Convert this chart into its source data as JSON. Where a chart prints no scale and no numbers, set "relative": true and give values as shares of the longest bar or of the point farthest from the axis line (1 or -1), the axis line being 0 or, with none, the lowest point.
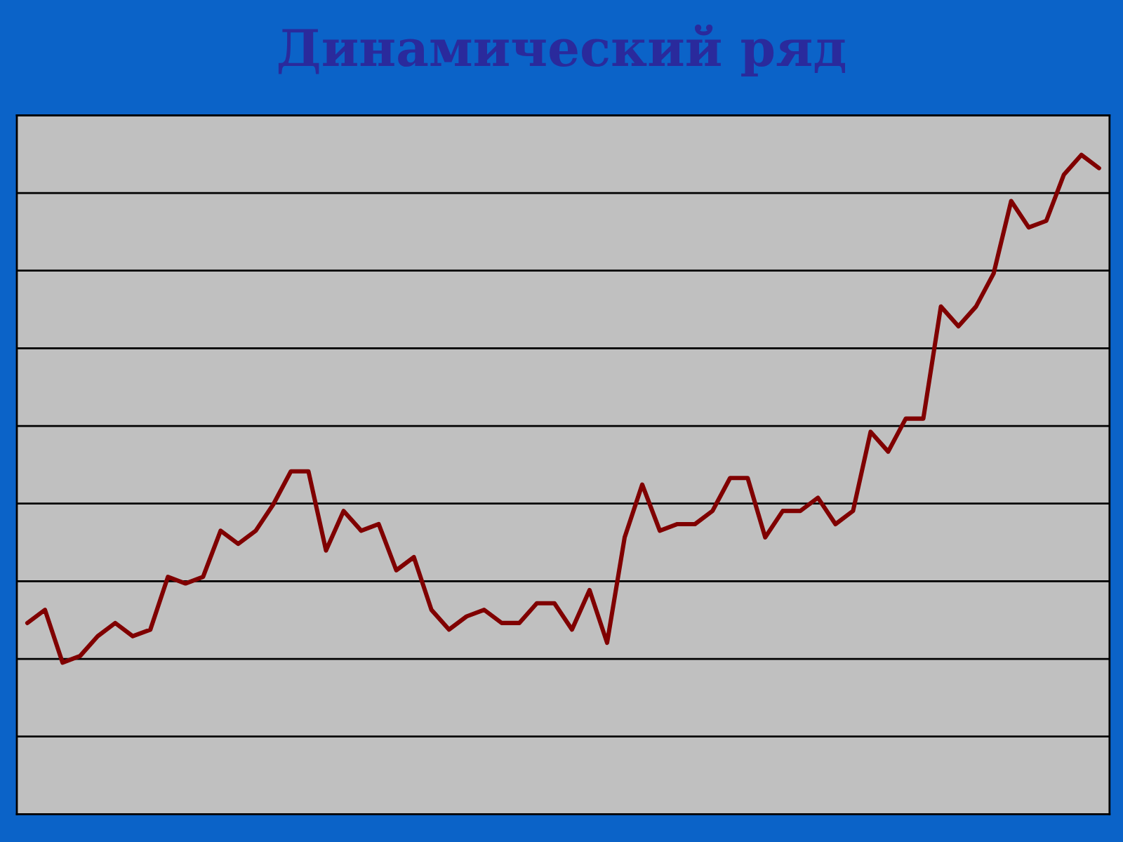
{
  "chart_data": {
    "type": "line",
    "title": "Динамический ряд",
    "categories": [
      null,
      null,
      null,
      null,
      null,
      null,
      null,
      null,
      null,
      null,
      null,
      null,
      null,
      null,
      null,
      null,
      null,
      null,
      null,
      null,
      null,
      null,
      null,
      null,
      null,
      null,
      null,
      null,
      null,
      null,
      null,
      null,
      null,
      null,
      null,
      null,
      null,
      null,
      null,
      null,
      null,
      null,
      null,
      null,
      null,
      null,
      null,
      null,
      null,
      null,
      null,
      null,
      null,
      null,
      null,
      null,
      null,
      null,
      null,
      null,
      null,
      null
    ],
    "relative": true,
    "series": [
      {
        "color": "#800000",
        "values": [
          0.29,
          0.31,
          0.23,
          0.24,
          0.27,
          0.29,
          0.27,
          0.28,
          0.36,
          0.35,
          0.36,
          0.43,
          0.41,
          0.43,
          0.47,
          0.52,
          0.52,
          0.4,
          0.46,
          0.43,
          0.44,
          0.37,
          0.39,
          0.31,
          0.28,
          0.3,
          0.31,
          0.29,
          0.29,
          0.32,
          0.32,
          0.28,
          0.34,
          0.26,
          0.42,
          0.5,
          0.43,
          0.44,
          0.44,
          0.46,
          0.51,
          0.51,
          0.42,
          0.46,
          0.46,
          0.48,
          0.44,
          0.46,
          0.58,
          0.55,
          0.6,
          0.6,
          0.77,
          0.74,
          0.77,
          0.82,
          0.93,
          0.89,
          0.9,
          0.97,
          1,
          0.98
        ]
      }
    ],
    "grid": "y"
  }
}
